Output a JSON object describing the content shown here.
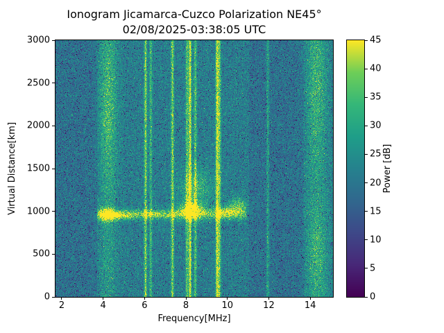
{
  "chart_data": {
    "type": "heatmap",
    "title": "Ionogram Jicamarca-Cuzco Polarization NE45°",
    "subtitle": "02/08/2025-03:38:05 UTC",
    "xlabel": "Frequency[MHz]",
    "ylabel": "Virtual Distance[km]",
    "colorbar_label": "Power [dB]",
    "x_range_mhz": [
      1.7,
      15.1
    ],
    "y_range_km": [
      0,
      3000
    ],
    "power_range_db": [
      0,
      45
    ],
    "x_ticks_mhz": [
      2,
      4,
      6,
      8,
      10,
      12,
      14
    ],
    "y_ticks_km": [
      0,
      500,
      1000,
      1500,
      2000,
      2500,
      3000
    ],
    "colorbar_ticks_db": [
      0,
      5,
      10,
      15,
      20,
      25,
      30,
      35,
      40,
      45
    ],
    "colormap": "viridis",
    "colormap_stops": [
      [
        0,
        "#440154"
      ],
      [
        0.125,
        "#482878"
      ],
      [
        0.25,
        "#3e4989"
      ],
      [
        0.375,
        "#31688e"
      ],
      [
        0.5,
        "#26828e"
      ],
      [
        0.625,
        "#1f9e89"
      ],
      [
        0.75,
        "#35b779"
      ],
      [
        0.875,
        "#6ece58"
      ],
      [
        1,
        "#fde725"
      ]
    ],
    "background": {
      "mean_db": 21.5,
      "noise_std_db": 4.5,
      "dark_bands_mhz": [
        [
          1.7,
          3.7
        ],
        [
          11.05,
          13.7
        ]
      ],
      "dark_band_mean_db": 19
    },
    "rfi_lines": [
      {
        "freq_mhz": 6.05,
        "amp_db": 18
      },
      {
        "freq_mhz": 6.3,
        "amp_db": 12
      },
      {
        "freq_mhz": 7.35,
        "amp_db": 18
      },
      {
        "freq_mhz": 8.05,
        "amp_db": 14
      },
      {
        "freq_mhz": 8.2,
        "amp_db": 24
      },
      {
        "freq_mhz": 8.45,
        "amp_db": 14
      },
      {
        "freq_mhz": 9.5,
        "amp_db": 22
      },
      {
        "freq_mhz": 9.62,
        "amp_db": 16
      },
      {
        "freq_mhz": 11.95,
        "amp_db": 10
      }
    ],
    "diffuse_columns": [
      {
        "freq_mhz": 4.25,
        "width_mhz": 0.3,
        "amp_db": 7
      },
      {
        "freq_mhz": 14.3,
        "width_mhz": 0.38,
        "amp_db": 8
      }
    ],
    "echo_trace": {
      "range_km": 965,
      "range_sigma_km": 45,
      "freq_span_mhz": [
        3.7,
        10.9
      ],
      "amp_db": 12
    },
    "echo_blobs": [
      {
        "freq_mhz": 4.2,
        "freq_sigma_mhz": 0.28,
        "range_km": 960,
        "range_sigma_km": 50,
        "amp_db": 26
      },
      {
        "freq_mhz": 4.9,
        "freq_sigma_mhz": 0.35,
        "range_km": 950,
        "range_sigma_km": 30,
        "amp_db": 12
      },
      {
        "freq_mhz": 6.6,
        "freq_sigma_mhz": 0.9,
        "range_km": 965,
        "range_sigma_km": 28,
        "amp_db": 8
      },
      {
        "freq_mhz": 8.3,
        "freq_sigma_mhz": 0.4,
        "range_km": 1010,
        "range_sigma_km": 70,
        "amp_db": 24
      },
      {
        "freq_mhz": 8.5,
        "freq_sigma_mhz": 0.55,
        "range_km": 1280,
        "range_sigma_km": 160,
        "amp_db": 11
      },
      {
        "freq_mhz": 9.9,
        "freq_sigma_mhz": 0.35,
        "range_km": 990,
        "range_sigma_km": 40,
        "amp_db": 14
      },
      {
        "freq_mhz": 10.5,
        "freq_sigma_mhz": 0.35,
        "range_km": 1060,
        "range_sigma_km": 70,
        "amp_db": 14
      },
      {
        "freq_mhz": 4.25,
        "freq_sigma_mhz": 0.3,
        "range_km": 2200,
        "range_sigma_km": 600,
        "amp_db": 7
      },
      {
        "freq_mhz": 14.35,
        "freq_sigma_mhz": 0.3,
        "range_km": 2500,
        "range_sigma_km": 450,
        "amp_db": 5
      },
      {
        "freq_mhz": 14.35,
        "freq_sigma_mhz": 0.3,
        "range_km": 550,
        "range_sigma_km": 350,
        "amp_db": 5
      }
    ],
    "noise_seed": 7
  }
}
